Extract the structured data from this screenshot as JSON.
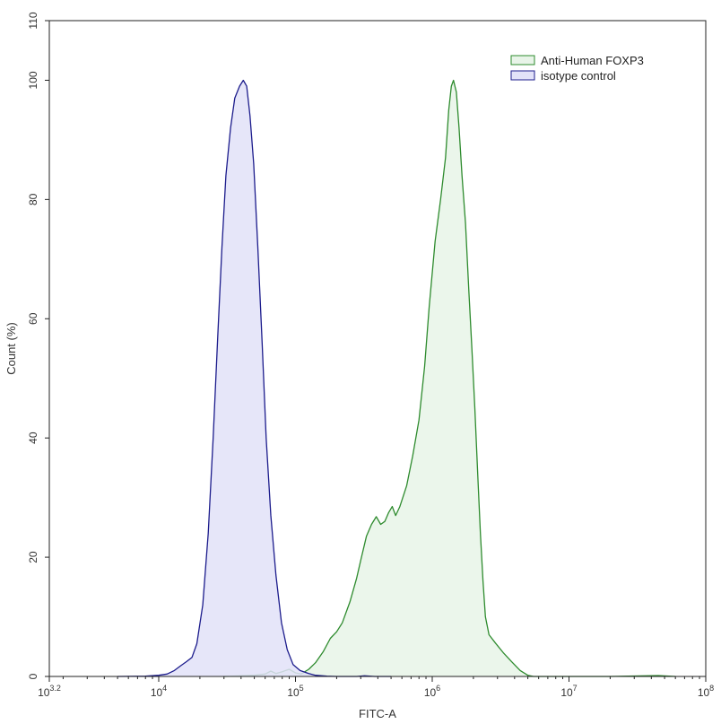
{
  "chart_data": {
    "type": "area",
    "title": "",
    "xlabel": "FITC-A",
    "ylabel": "Count (%)",
    "xscale": "log",
    "xlim": [
      1584.89,
      100000000
    ],
    "ylim": [
      0,
      110
    ],
    "x_ticks": [
      {
        "value": 1584.89,
        "base": "10",
        "exp": "3.2"
      },
      {
        "value": 10000,
        "base": "10",
        "exp": "4"
      },
      {
        "value": 100000,
        "base": "10",
        "exp": "5"
      },
      {
        "value": 1000000,
        "base": "10",
        "exp": "6"
      },
      {
        "value": 10000000,
        "base": "10",
        "exp": "7"
      },
      {
        "value": 100000000,
        "base": "10",
        "exp": "8"
      }
    ],
    "y_ticks": [
      "0",
      "20",
      "40",
      "60",
      "80",
      "100",
      "110"
    ],
    "y_tick_values": [
      0,
      20,
      40,
      60,
      80,
      100,
      110
    ],
    "grid": false,
    "legend_position": "top-right",
    "series": [
      {
        "name": "Anti-Human FOXP3",
        "stroke": "#2e8b2e",
        "fill": "#e8f4e8",
        "points": [
          [
            30000,
            0.0
          ],
          [
            50000,
            0.2
          ],
          [
            60000,
            0.4
          ],
          [
            66000,
            0.9
          ],
          [
            72000,
            0.5
          ],
          [
            80000,
            0.8
          ],
          [
            90000,
            1.2
          ],
          [
            100000,
            0.6
          ],
          [
            110000,
            0.4
          ],
          [
            125000,
            1.2
          ],
          [
            140000,
            2.3
          ],
          [
            160000,
            4.2
          ],
          [
            180000,
            6.4
          ],
          [
            200000,
            7.5
          ],
          [
            220000,
            9.0
          ],
          [
            250000,
            12.5
          ],
          [
            280000,
            16.5
          ],
          [
            300000,
            19.5
          ],
          [
            330000,
            23.5
          ],
          [
            360000,
            25.5
          ],
          [
            390000,
            26.8
          ],
          [
            420000,
            25.5
          ],
          [
            450000,
            26.0
          ],
          [
            480000,
            27.5
          ],
          [
            510000,
            28.5
          ],
          [
            540000,
            27.0
          ],
          [
            580000,
            28.5
          ],
          [
            650000,
            32.0
          ],
          [
            720000,
            37.0
          ],
          [
            800000,
            43.0
          ],
          [
            880000,
            52.0
          ],
          [
            950000,
            62.0
          ],
          [
            1050000,
            73.0
          ],
          [
            1150000,
            80.0
          ],
          [
            1250000,
            87.0
          ],
          [
            1320000,
            95.0
          ],
          [
            1380000,
            99.0
          ],
          [
            1430000,
            100.0
          ],
          [
            1500000,
            98.0
          ],
          [
            1570000,
            92.0
          ],
          [
            1650000,
            84.0
          ],
          [
            1750000,
            76.0
          ],
          [
            1850000,
            65.0
          ],
          [
            1950000,
            55.0
          ],
          [
            2050000,
            45.0
          ],
          [
            2150000,
            34.0
          ],
          [
            2250000,
            24.0
          ],
          [
            2350000,
            16.0
          ],
          [
            2450000,
            10.0
          ],
          [
            2600000,
            7.0
          ],
          [
            2900000,
            5.6
          ],
          [
            3300000,
            4.0
          ],
          [
            3800000,
            2.5
          ],
          [
            4400000,
            1.0
          ],
          [
            5000000,
            0.2
          ],
          [
            5500000,
            0.0
          ],
          [
            20000000,
            0.0
          ],
          [
            45000000,
            0.15
          ],
          [
            60000000,
            0.0
          ]
        ]
      },
      {
        "name": "isotype control",
        "stroke": "#1c1c8c",
        "fill": "#e2e2f8",
        "points": [
          [
            5000,
            0.0
          ],
          [
            8000,
            0.05
          ],
          [
            10000,
            0.2
          ],
          [
            11500,
            0.4
          ],
          [
            13000,
            1.0
          ],
          [
            14500,
            1.8
          ],
          [
            16000,
            2.5
          ],
          [
            17500,
            3.2
          ],
          [
            19000,
            5.5
          ],
          [
            21000,
            12.0
          ],
          [
            23000,
            24.0
          ],
          [
            25000,
            40.0
          ],
          [
            27000,
            57.0
          ],
          [
            29000,
            72.0
          ],
          [
            31000,
            84.0
          ],
          [
            33500,
            92.0
          ],
          [
            36000,
            97.0
          ],
          [
            39000,
            99.0
          ],
          [
            41500,
            100.0
          ],
          [
            44000,
            99.0
          ],
          [
            46500,
            94.0
          ],
          [
            49500,
            86.0
          ],
          [
            53000,
            72.0
          ],
          [
            57000,
            56.0
          ],
          [
            61000,
            40.0
          ],
          [
            66000,
            27.0
          ],
          [
            72000,
            17.0
          ],
          [
            79000,
            9.0
          ],
          [
            87000,
            4.5
          ],
          [
            96000,
            2.0
          ],
          [
            108000,
            1.0
          ],
          [
            125000,
            0.5
          ],
          [
            140000,
            0.2
          ],
          [
            170000,
            0.05
          ],
          [
            200000,
            0.0
          ],
          [
            280000,
            0.0
          ],
          [
            320000,
            0.1
          ],
          [
            380000,
            0.0
          ],
          [
            500000,
            0.0
          ]
        ]
      }
    ]
  }
}
